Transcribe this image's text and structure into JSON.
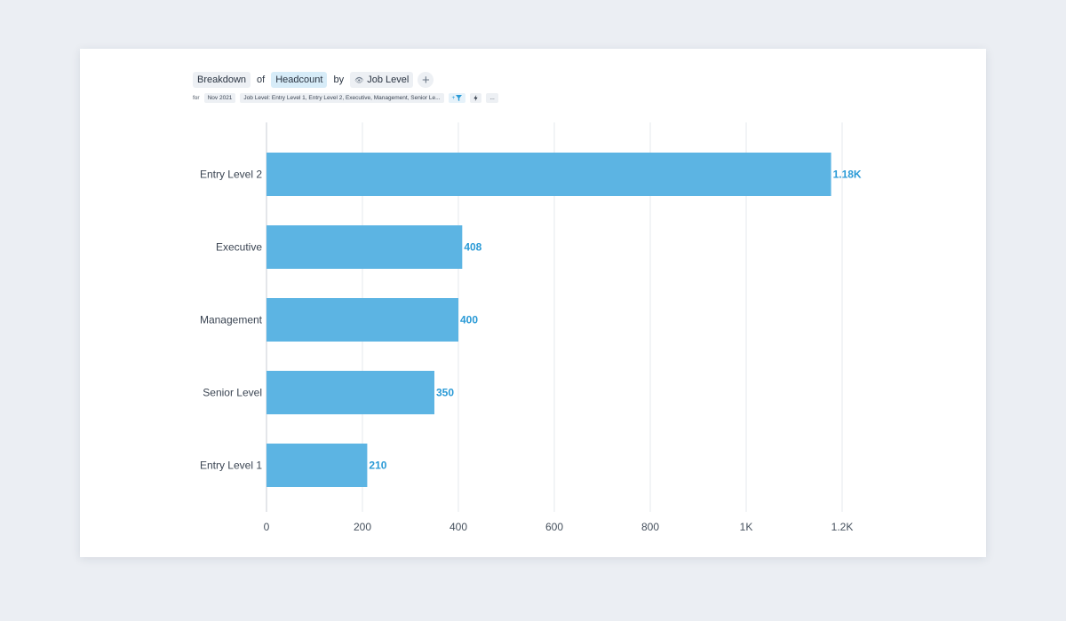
{
  "query": {
    "breakdown_label": "Breakdown",
    "of_word": "of",
    "metric_label": "Headcount",
    "by_word": "by",
    "dimension_label": "Job Level",
    "add_icon": "plus-icon"
  },
  "filters": {
    "for_word": "for",
    "period": "Nov 2021",
    "job_level_filter": "Job Level: Entry Level 1, Entry Level 2, Executive, Management, Senior Le...",
    "add_filter_label": "+",
    "more_label": "..."
  },
  "colors": {
    "bar": "#5cb4e3",
    "value_label": "#2a9ad6",
    "grid": "#e5e8ec",
    "axis": "#c8cdd4"
  },
  "chart_data": {
    "type": "bar",
    "orientation": "horizontal",
    "categories": [
      "Entry Level 2",
      "Executive",
      "Management",
      "Senior Level",
      "Entry Level 1"
    ],
    "values": [
      1177,
      408,
      400,
      350,
      210
    ],
    "value_labels": [
      "1.18K",
      "408",
      "400",
      "350",
      "210"
    ],
    "xlim": [
      0,
      1200
    ],
    "x_ticks": [
      0,
      200,
      400,
      600,
      800,
      1000,
      1200
    ],
    "x_tick_labels": [
      "0",
      "200",
      "400",
      "600",
      "800",
      "1K",
      "1.2K"
    ],
    "grid": true,
    "title": "",
    "xlabel": "",
    "ylabel": ""
  }
}
